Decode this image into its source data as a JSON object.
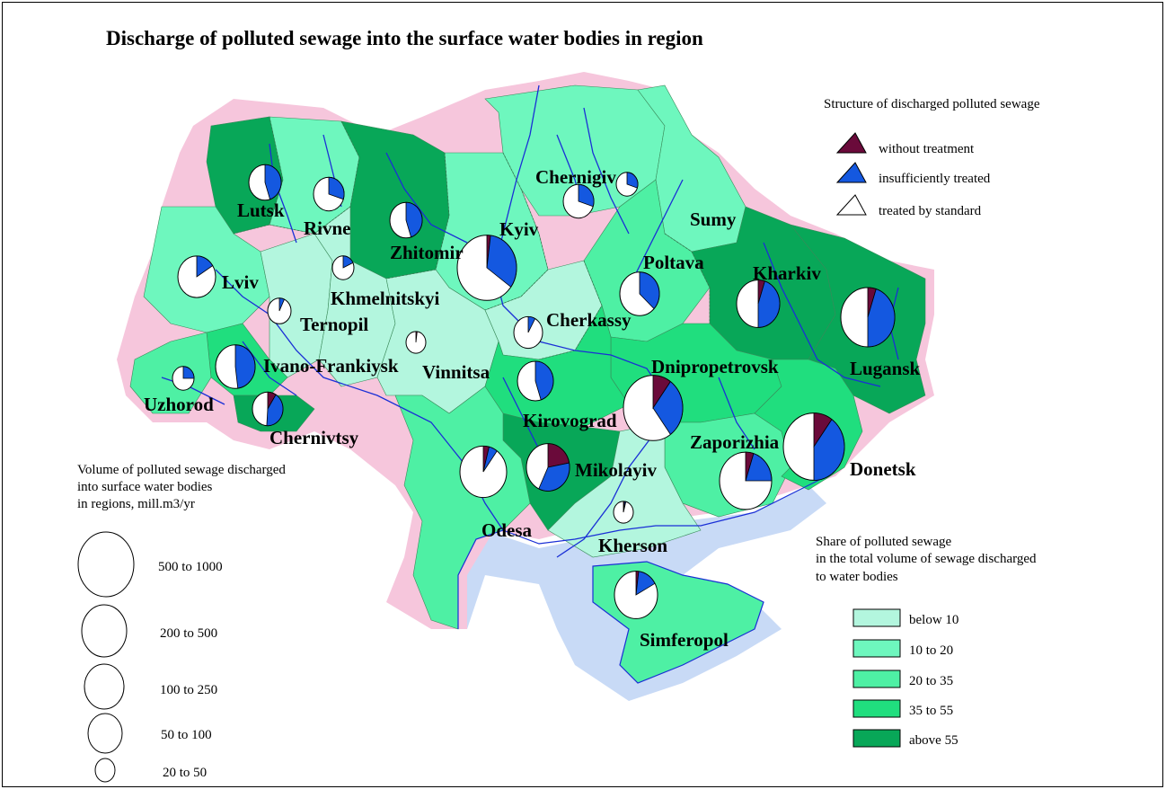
{
  "title": "Discharge of polluted sewage into the surface water bodies in region",
  "colors": {
    "untreated": "#6a0a3a",
    "insufficient": "#1458e0",
    "treated": "#ffffff",
    "coast_sea": "#c8daf6",
    "border_glow": "#f6c6dc",
    "river": "#1a2fd6"
  },
  "structure_legend": {
    "title": "Structure of discharged polluted sewage",
    "items": [
      {
        "label": "without treatment",
        "color": "#6a0a3a"
      },
      {
        "label": "insufficiently treated",
        "color": "#1458e0"
      },
      {
        "label": "treated by standard",
        "color": "#ffffff"
      }
    ]
  },
  "volume_legend": {
    "title_lines": [
      "Volume of polluted sewage discharged",
      "into surface water bodies",
      "in regions, mill.m3/yr"
    ],
    "items": [
      "500 to 1000",
      "200 to 500",
      "100 to 250",
      "50 to 100",
      "20 to 50"
    ]
  },
  "share_legend": {
    "title_lines": [
      "Share of polluted sewage",
      "in the total volume of sewage discharged",
      "to water bodies"
    ],
    "items": [
      {
        "label": "below 10",
        "color": "#b3f6de"
      },
      {
        "label": "10 to 20",
        "color": "#6ef7be"
      },
      {
        "label": "20 to 35",
        "color": "#4ef0a4"
      },
      {
        "label": "35 to 55",
        "color": "#20de7e"
      },
      {
        "label": "above 55",
        "color": "#08a758"
      }
    ]
  },
  "regions": [
    {
      "name": "Lutsk",
      "share_class": 4,
      "pie": {
        "untreated": 0.0,
        "insufficient": 0.45,
        "treated": 0.55
      }
    },
    {
      "name": "Rivne",
      "share_class": 1,
      "pie": {
        "untreated": 0.0,
        "insufficient": 0.3,
        "treated": 0.7
      }
    },
    {
      "name": "Zhitomir",
      "share_class": 4,
      "pie": {
        "untreated": 0.0,
        "insufficient": 0.45,
        "treated": 0.55
      }
    },
    {
      "name": "Kyiv",
      "share_class": 1,
      "pie": {
        "untreated": 0.02,
        "insufficient": 0.33,
        "treated": 0.65
      }
    },
    {
      "name": "Chernigiv",
      "share_class": 1,
      "pie": {
        "untreated": 0.0,
        "insufficient": 0.3,
        "treated": 0.7
      }
    },
    {
      "name": "Sumy",
      "share_class": 1,
      "pie": {
        "untreated": 0.0,
        "insufficient": 0.3,
        "treated": 0.7
      }
    },
    {
      "name": "Lviv",
      "share_class": 1,
      "pie": {
        "untreated": 0.0,
        "insufficient": 0.16,
        "treated": 0.84
      }
    },
    {
      "name": "Ternopil",
      "share_class": 0,
      "pie": {
        "untreated": 0.0,
        "insufficient": 0.07,
        "treated": 0.93
      }
    },
    {
      "name": "Khmelnitskyi",
      "share_class": 0,
      "pie": {
        "untreated": 0.0,
        "insufficient": 0.18,
        "treated": 0.82
      }
    },
    {
      "name": "Vinnitsa",
      "share_class": 0,
      "pie": {
        "untreated": 0.02,
        "insufficient": 0.0,
        "treated": 0.98
      }
    },
    {
      "name": "Cherkassy",
      "share_class": 0,
      "pie": {
        "untreated": 0.0,
        "insufficient": 0.08,
        "treated": 0.92
      }
    },
    {
      "name": "Poltava",
      "share_class": 2,
      "pie": {
        "untreated": 0.0,
        "insufficient": 0.37,
        "treated": 0.63
      }
    },
    {
      "name": "Kharkiv",
      "share_class": 4,
      "pie": {
        "untreated": 0.05,
        "insufficient": 0.45,
        "treated": 0.5
      }
    },
    {
      "name": "Lugansk",
      "share_class": 4,
      "pie": {
        "untreated": 0.05,
        "insufficient": 0.45,
        "treated": 0.5
      }
    },
    {
      "name": "Ivano-Frankiysk",
      "share_class": 3,
      "pie": {
        "untreated": 0.0,
        "insufficient": 0.48,
        "treated": 0.52
      }
    },
    {
      "name": "Uzhorod",
      "share_class": 2,
      "pie": {
        "untreated": 0.0,
        "insufficient": 0.25,
        "treated": 0.75
      }
    },
    {
      "name": "Chernivtsy",
      "share_class": 4,
      "pie": {
        "untreated": 0.09,
        "insufficient": 0.42,
        "treated": 0.49
      }
    },
    {
      "name": "Dnipropetrovsk",
      "share_class": 3,
      "pie": {
        "untreated": 0.1,
        "insufficient": 0.3,
        "treated": 0.6
      }
    },
    {
      "name": "Kirovograd",
      "share_class": 3,
      "pie": {
        "untreated": 0.0,
        "insufficient": 0.45,
        "treated": 0.55
      }
    },
    {
      "name": "Mikolayiv",
      "share_class": 4,
      "pie": {
        "untreated": 0.22,
        "insufficient": 0.35,
        "treated": 0.43
      }
    },
    {
      "name": "Odesa",
      "share_class": 2,
      "pie": {
        "untreated": 0.04,
        "insufficient": 0.06,
        "treated": 0.9
      }
    },
    {
      "name": "Zaporizhia",
      "share_class": 2,
      "pie": {
        "untreated": 0.05,
        "insufficient": 0.2,
        "treated": 0.75
      }
    },
    {
      "name": "Donetsk",
      "share_class": 3,
      "pie": {
        "untreated": 0.1,
        "insufficient": 0.4,
        "treated": 0.5
      }
    },
    {
      "name": "Kherson",
      "share_class": 0,
      "pie": {
        "untreated": 0.02,
        "insufficient": 0.02,
        "treated": 0.96
      }
    },
    {
      "name": "Simferopol",
      "share_class": 2,
      "pie": {
        "untreated": 0.02,
        "insufficient": 0.15,
        "treated": 0.83
      }
    }
  ]
}
